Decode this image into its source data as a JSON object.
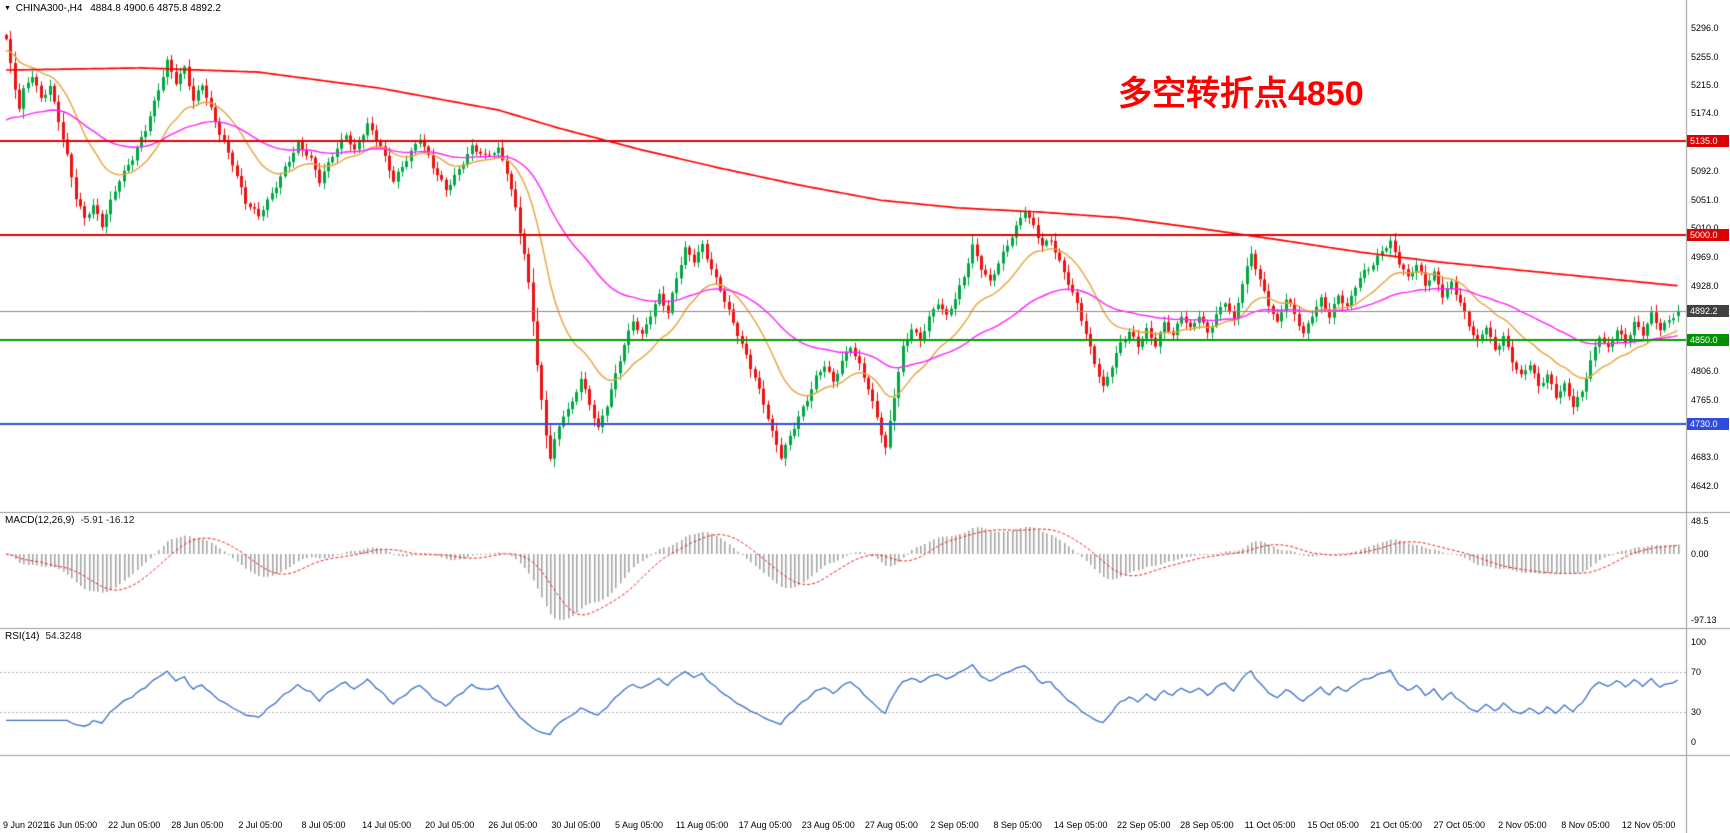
{
  "header": {
    "marker": "▼",
    "symbol_period": "CHINA300-,H4",
    "ohlc_text": "4884.8 4900.6 4875.8 4892.2"
  },
  "annotation": {
    "text": "多空转折点4850",
    "color": "#ff0000"
  },
  "panes": {
    "macd": {
      "label": "MACD(12,26,9)",
      "values": "-5.91 -16.12",
      "axis_labels": [
        "48.5",
        "0.00",
        "-97.13"
      ],
      "axis_values": [
        48.5,
        0,
        -97.13
      ]
    },
    "rsi": {
      "label": "RSI(14)",
      "value": "54.3248",
      "axis_labels": [
        "100",
        "70",
        "30",
        "0"
      ],
      "axis_values": [
        100,
        70,
        30,
        0
      ]
    }
  },
  "price_axis": {
    "ticks": [
      "5296.0",
      "5255.0",
      "5215.0",
      "5174.0",
      "5092.0",
      "5051.0",
      "5010.0",
      "4969.0",
      "4928.0",
      "4806.0",
      "4765.0",
      "4683.0",
      "4642.0"
    ],
    "badges": [
      {
        "text": "5135.0",
        "price": 5135.0,
        "bg": "#dd0000"
      },
      {
        "text": "5000.0",
        "price": 5000.0,
        "bg": "#dd0000"
      },
      {
        "text": "4892.2",
        "price": 4892.2,
        "bg": "#404040"
      },
      {
        "text": "4850.0",
        "price": 4850.0,
        "bg": "#009100"
      },
      {
        "text": "4730.0",
        "price": 4730.0,
        "bg": "#2f4cdd"
      }
    ]
  },
  "time_axis": {
    "labels": [
      "9 Jun 2021",
      "16 Jun 05:00",
      "22 Jun 05:00",
      "28 Jun 05:00",
      "2 Jul 05:00",
      "8 Jul 05:00",
      "14 Jul 05:00",
      "20 Jul 05:00",
      "26 Jul 05:00",
      "30 Jul 05:00",
      "5 Aug 05:00",
      "11 Aug 05:00",
      "17 Aug 05:00",
      "23 Aug 05:00",
      "27 Aug 05:00",
      "2 Sep 05:00",
      "8 Sep 05:00",
      "14 Sep 05:00",
      "22 Sep 05:00",
      "28 Sep 05:00",
      "11 Oct 05:00",
      "15 Oct 05:00",
      "21 Oct 05:00",
      "27 Oct 05:00",
      "2 Nov 05:00",
      "8 Nov 05:00",
      "12 Nov 05:00"
    ]
  },
  "chart_data": {
    "type": "candlestick",
    "symbol": "CHINA300-",
    "timeframe": "H4",
    "bars": 385,
    "price_axis_range": [
      4642.0,
      5296.0
    ],
    "last_ohlc": {
      "open": 4884.8,
      "high": 4900.6,
      "low": 4875.8,
      "close": 4892.2
    },
    "candle_colors": {
      "up": "#00a843",
      "down": "#ed1111"
    },
    "close_waypoints": [
      [
        0,
        5280
      ],
      [
        1,
        5242
      ],
      [
        2,
        5208
      ],
      [
        3,
        5180
      ],
      [
        4,
        5205
      ],
      [
        6,
        5228
      ],
      [
        8,
        5196
      ],
      [
        10,
        5215
      ],
      [
        12,
        5165
      ],
      [
        14,
        5112
      ],
      [
        16,
        5052
      ],
      [
        18,
        5022
      ],
      [
        20,
        5042
      ],
      [
        22,
        5016
      ],
      [
        24,
        5050
      ],
      [
        26,
        5080
      ],
      [
        29,
        5108
      ],
      [
        32,
        5150
      ],
      [
        35,
        5210
      ],
      [
        37,
        5250
      ],
      [
        39,
        5220
      ],
      [
        41,
        5238
      ],
      [
        43,
        5190
      ],
      [
        45,
        5214
      ],
      [
        47,
        5180
      ],
      [
        49,
        5148
      ],
      [
        52,
        5104
      ],
      [
        55,
        5046
      ],
      [
        58,
        5026
      ],
      [
        61,
        5060
      ],
      [
        64,
        5098
      ],
      [
        67,
        5130
      ],
      [
        70,
        5106
      ],
      [
        72,
        5076
      ],
      [
        75,
        5116
      ],
      [
        78,
        5146
      ],
      [
        80,
        5120
      ],
      [
        83,
        5156
      ],
      [
        86,
        5126
      ],
      [
        89,
        5080
      ],
      [
        92,
        5110
      ],
      [
        95,
        5138
      ],
      [
        98,
        5096
      ],
      [
        101,
        5066
      ],
      [
        104,
        5096
      ],
      [
        107,
        5126
      ],
      [
        110,
        5110
      ],
      [
        113,
        5122
      ],
      [
        115,
        5092
      ],
      [
        117,
        5040
      ],
      [
        119,
        4975
      ],
      [
        120,
        4930
      ],
      [
        121,
        4878
      ],
      [
        122,
        4815
      ],
      [
        123,
        4760
      ],
      [
        124,
        4712
      ],
      [
        125,
        4682
      ],
      [
        126,
        4706
      ],
      [
        128,
        4745
      ],
      [
        130,
        4762
      ],
      [
        132,
        4798
      ],
      [
        134,
        4758
      ],
      [
        136,
        4722
      ],
      [
        138,
        4756
      ],
      [
        140,
        4800
      ],
      [
        142,
        4846
      ],
      [
        144,
        4880
      ],
      [
        146,
        4858
      ],
      [
        148,
        4886
      ],
      [
        150,
        4912
      ],
      [
        152,
        4888
      ],
      [
        154,
        4940
      ],
      [
        156,
        4982
      ],
      [
        158,
        4966
      ],
      [
        160,
        4986
      ],
      [
        162,
        4950
      ],
      [
        164,
        4920
      ],
      [
        166,
        4890
      ],
      [
        168,
        4860
      ],
      [
        170,
        4830
      ],
      [
        172,
        4798
      ],
      [
        174,
        4760
      ],
      [
        176,
        4716
      ],
      [
        178,
        4682
      ],
      [
        180,
        4712
      ],
      [
        182,
        4742
      ],
      [
        184,
        4768
      ],
      [
        186,
        4798
      ],
      [
        188,
        4814
      ],
      [
        190,
        4788
      ],
      [
        192,
        4818
      ],
      [
        194,
        4842
      ],
      [
        196,
        4816
      ],
      [
        198,
        4784
      ],
      [
        200,
        4740
      ],
      [
        202,
        4694
      ],
      [
        204,
        4768
      ],
      [
        206,
        4838
      ],
      [
        208,
        4868
      ],
      [
        210,
        4852
      ],
      [
        212,
        4884
      ],
      [
        214,
        4904
      ],
      [
        216,
        4882
      ],
      [
        218,
        4908
      ],
      [
        220,
        4940
      ],
      [
        222,
        4986
      ],
      [
        224,
        4956
      ],
      [
        226,
        4934
      ],
      [
        228,
        4960
      ],
      [
        230,
        4984
      ],
      [
        232,
        5010
      ],
      [
        234,
        5036
      ],
      [
        236,
        5014
      ],
      [
        238,
        4988
      ],
      [
        240,
        4994
      ],
      [
        242,
        4960
      ],
      [
        244,
        4930
      ],
      [
        246,
        4900
      ],
      [
        248,
        4860
      ],
      [
        250,
        4820
      ],
      [
        252,
        4784
      ],
      [
        254,
        4814
      ],
      [
        256,
        4844
      ],
      [
        258,
        4860
      ],
      [
        260,
        4842
      ],
      [
        262,
        4866
      ],
      [
        264,
        4846
      ],
      [
        266,
        4876
      ],
      [
        268,
        4856
      ],
      [
        270,
        4884
      ],
      [
        272,
        4864
      ],
      [
        274,
        4886
      ],
      [
        276,
        4862
      ],
      [
        278,
        4888
      ],
      [
        280,
        4906
      ],
      [
        282,
        4876
      ],
      [
        284,
        4930
      ],
      [
        286,
        4972
      ],
      [
        288,
        4936
      ],
      [
        290,
        4904
      ],
      [
        292,
        4876
      ],
      [
        294,
        4910
      ],
      [
        296,
        4886
      ],
      [
        298,
        4856
      ],
      [
        300,
        4886
      ],
      [
        302,
        4910
      ],
      [
        304,
        4886
      ],
      [
        306,
        4916
      ],
      [
        308,
        4896
      ],
      [
        310,
        4926
      ],
      [
        312,
        4946
      ],
      [
        314,
        4958
      ],
      [
        316,
        4980
      ],
      [
        318,
        4992
      ],
      [
        320,
        4962
      ],
      [
        322,
        4938
      ],
      [
        324,
        4956
      ],
      [
        326,
        4928
      ],
      [
        328,
        4946
      ],
      [
        330,
        4916
      ],
      [
        332,
        4934
      ],
      [
        334,
        4904
      ],
      [
        336,
        4870
      ],
      [
        338,
        4844
      ],
      [
        340,
        4870
      ],
      [
        342,
        4836
      ],
      [
        344,
        4858
      ],
      [
        346,
        4822
      ],
      [
        348,
        4798
      ],
      [
        350,
        4815
      ],
      [
        352,
        4782
      ],
      [
        354,
        4800
      ],
      [
        356,
        4772
      ],
      [
        358,
        4788
      ],
      [
        360,
        4758
      ],
      [
        362,
        4775
      ],
      [
        364,
        4818
      ],
      [
        366,
        4855
      ],
      [
        368,
        4838
      ],
      [
        370,
        4868
      ],
      [
        372,
        4848
      ],
      [
        374,
        4875
      ],
      [
        376,
        4858
      ],
      [
        378,
        4885
      ],
      [
        380,
        4865
      ],
      [
        382,
        4880
      ],
      [
        384,
        4892
      ]
    ],
    "horizontal_levels": [
      {
        "price": 5135.0,
        "color": "#e60000",
        "width": 2,
        "role": "resistance"
      },
      {
        "price": 5000.0,
        "color": "#e60000",
        "width": 2,
        "role": "resistance"
      },
      {
        "price": 4850.0,
        "color": "#00a000",
        "width": 2,
        "role": "pivot"
      },
      {
        "price": 4730.0,
        "color": "#3050e0",
        "width": 2,
        "role": "support"
      },
      {
        "price": 4892.2,
        "color": "#8a8a8a",
        "width": 1,
        "role": "last-price"
      }
    ],
    "moving_averages": [
      {
        "type": "ema",
        "period": 18,
        "color": "#e8a33d",
        "seed": 5262
      },
      {
        "type": "ema",
        "period": 55,
        "color": "#ff22ff",
        "seed": 5160
      }
    ],
    "slow_ma_path": {
      "color": "#ff0000",
      "points": [
        [
          1,
          5236
        ],
        [
          31,
          5239
        ],
        [
          58,
          5233
        ],
        [
          86,
          5210
        ],
        [
          113,
          5179
        ],
        [
          127,
          5153
        ],
        [
          146,
          5122
        ],
        [
          164,
          5096
        ],
        [
          182,
          5072
        ],
        [
          201,
          5050
        ],
        [
          219,
          5039
        ],
        [
          238,
          5033
        ],
        [
          256,
          5025
        ],
        [
          274,
          5010
        ],
        [
          293,
          4993
        ],
        [
          311,
          4976
        ],
        [
          329,
          4962
        ],
        [
          348,
          4950
        ],
        [
          366,
          4939
        ],
        [
          384,
          4928
        ]
      ]
    },
    "indicators": {
      "macd": {
        "params": [
          12,
          26,
          9
        ],
        "display_values": [
          -5.91,
          -16.12
        ],
        "axis_range": [
          48.5,
          -97.13
        ],
        "histogram_color": "#a6a6a6",
        "signal_color": "#ee2222"
      },
      "rsi": {
        "period": 14,
        "value": 54.3248,
        "levels": [
          70,
          30
        ],
        "line_color": "#3b6fc9"
      }
    }
  }
}
